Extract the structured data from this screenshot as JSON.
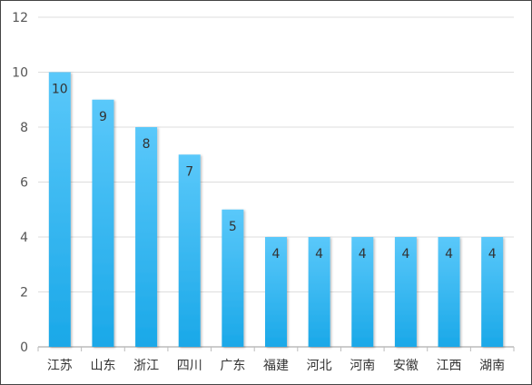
{
  "chart_data": {
    "type": "bar",
    "categories": [
      "江苏",
      "山东",
      "浙江",
      "四川",
      "广东",
      "福建",
      "河北",
      "河南",
      "安徽",
      "江西",
      "湖南"
    ],
    "values": [
      10,
      9,
      8,
      7,
      5,
      4,
      4,
      4,
      4,
      4,
      4
    ],
    "ylim": [
      0,
      12
    ],
    "yticks": [
      0,
      2,
      4,
      6,
      8,
      10,
      12
    ],
    "grid": true,
    "data_labels": true,
    "colors": {
      "bar_top": "#5ac8fa",
      "bar_bottom": "#1aa8e8",
      "grid": "#dddddd",
      "axis": "#bbbbbb"
    }
  }
}
